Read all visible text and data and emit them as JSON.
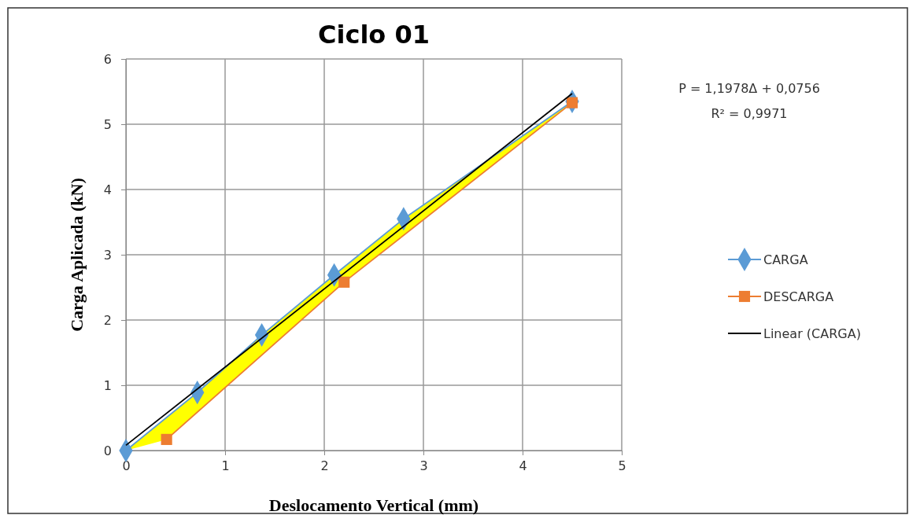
{
  "chart_data": {
    "type": "line",
    "title": "Ciclo  01",
    "xlabel": "Deslocamento Vertical (mm)",
    "ylabel": "Carga Aplicada  (kN)",
    "xlim": [
      0,
      5
    ],
    "xticks": [
      0,
      1,
      2,
      3,
      4,
      5
    ],
    "ylim": [
      0,
      6
    ],
    "yticks": [
      0,
      1,
      2,
      3,
      4,
      5,
      6
    ],
    "grid": true,
    "legend": "right",
    "series": [
      {
        "name": "CARGA",
        "color": "#5b9bd5",
        "marker": "diamond",
        "x": [
          0,
          0.72,
          1.37,
          2.1,
          2.8,
          4.5
        ],
        "values": [
          0,
          0.89,
          1.77,
          2.69,
          3.55,
          5.35
        ]
      },
      {
        "name": "DESCARGA",
        "color": "#ed7d31",
        "marker": "square",
        "x": [
          4.5,
          2.2,
          0.41
        ],
        "values": [
          5.33,
          2.58,
          0.17
        ]
      },
      {
        "name": "Linear (CARGA)",
        "color": "#000000",
        "marker": "none",
        "x": [
          0,
          4.5
        ],
        "values": [
          0.08,
          5.47
        ]
      }
    ],
    "annotations": [
      "P = 1,1978Δ + 0,0756",
      "R² = 0,9971"
    ]
  }
}
